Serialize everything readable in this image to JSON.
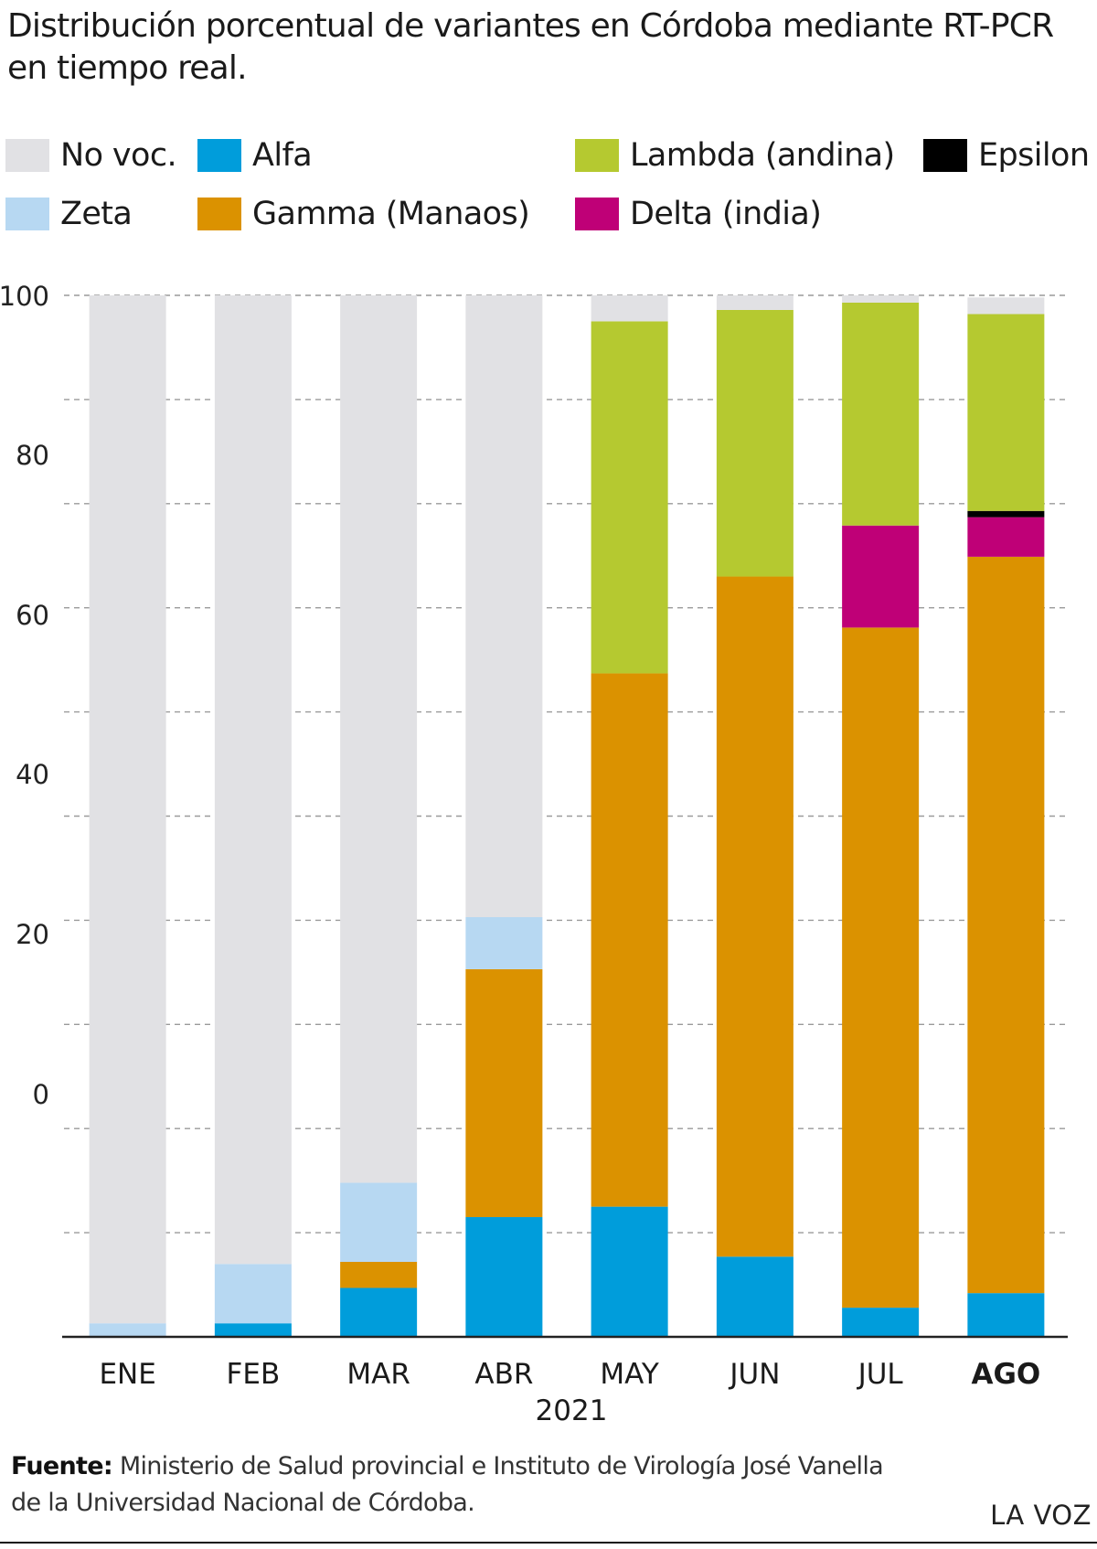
{
  "title": "Distribución porcentual de variantes en Córdoba mediante RT-PCR en tiempo real.",
  "legend": [
    {
      "name": "No voc.",
      "color": "#e1e1e4"
    },
    {
      "name": "Alfa",
      "color": "#009ddb"
    },
    {
      "name": "Lambda (andina)",
      "color": "#b5c930"
    },
    {
      "name": "Epsilon",
      "color": "#000000"
    },
    {
      "name": "Zeta",
      "color": "#b7d8f2"
    },
    {
      "name": "Gamma (Manaos)",
      "color": "#db9200"
    },
    {
      "name": "Delta (india)",
      "color": "#bf0077"
    }
  ],
  "chart_data": {
    "type": "bar",
    "stacked": true,
    "categories": [
      "ENE",
      "FEB",
      "MAR",
      "ABR",
      "MAY",
      "JUN",
      "JUL",
      "AGO"
    ],
    "highlighted_category": "AGO",
    "xlabel": "2021",
    "yticks": [
      "100",
      "80",
      "60",
      "40",
      "20",
      "0"
    ],
    "ylim": [
      0,
      100
    ],
    "grid": true,
    "series": [
      {
        "name": "Alfa",
        "color": "#009ddb",
        "values": [
          0,
          1.3,
          4.7,
          11.5,
          12.5,
          7.7,
          2.8,
          4.2
        ]
      },
      {
        "name": "Gamma (Manaos)",
        "color": "#db9200",
        "values": [
          0,
          0,
          2.5,
          23.8,
          51.2,
          65.3,
          65.3,
          70.7
        ]
      },
      {
        "name": "Zeta",
        "color": "#b7d8f2",
        "values": [
          1.3,
          5.7,
          7.6,
          5.0,
          0,
          0,
          0,
          0
        ]
      },
      {
        "name": "Delta (india)",
        "color": "#bf0077",
        "values": [
          0,
          0,
          0,
          0,
          0,
          0,
          9.8,
          3.8
        ]
      },
      {
        "name": "Epsilon",
        "color": "#000000",
        "values": [
          0,
          0,
          0,
          0,
          0,
          0,
          0,
          0.6
        ]
      },
      {
        "name": "Lambda (andina)",
        "color": "#b5c930",
        "values": [
          0,
          0,
          0,
          0,
          33.8,
          25.6,
          21.4,
          18.9
        ]
      },
      {
        "name": "No voc.",
        "color": "#e1e1e4",
        "values": [
          98.7,
          93.0,
          85.2,
          59.7,
          2.5,
          1.4,
          0.7,
          1.6
        ]
      }
    ]
  },
  "footer": {
    "source_label": "Fuente:",
    "source_text": " Ministerio de Salud provincial e Instituto de Virología José Vanella de la Universidad Nacional de Córdoba.",
    "brand": "LA VOZ"
  }
}
